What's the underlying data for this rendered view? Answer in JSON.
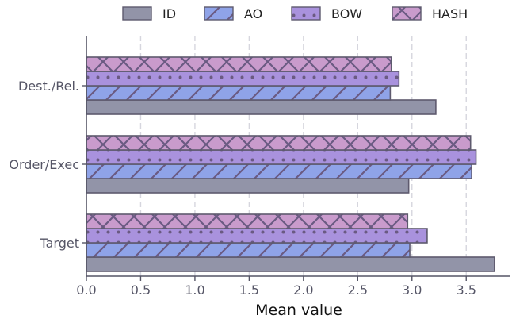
{
  "chart_data": {
    "type": "bar",
    "orientation": "horizontal",
    "categories": [
      "Target",
      "Order/Exec",
      "Dest./Rel."
    ],
    "series": [
      {
        "name": "ID",
        "values": [
          3.76,
          2.97,
          3.22
        ],
        "color": "#9294a8",
        "hatch": "none"
      },
      {
        "name": "AO",
        "values": [
          2.98,
          3.55,
          2.8
        ],
        "color": "#8fa3e8",
        "hatch": "diagonal"
      },
      {
        "name": "BOW",
        "values": [
          3.14,
          3.59,
          2.88
        ],
        "color": "#a992dd",
        "hatch": "dots"
      },
      {
        "name": "HASH",
        "values": [
          2.96,
          3.54,
          2.81
        ],
        "color": "#c99bcc",
        "hatch": "crosshatch"
      }
    ],
    "xlabel": "Mean value",
    "ylabel": "",
    "xlim": [
      0,
      3.9
    ],
    "xticks": [
      "0.0",
      "0.5",
      "1.0",
      "1.5",
      "2.0",
      "2.5",
      "3.0",
      "3.5"
    ],
    "grid": "vertical dashed",
    "legend_position": "top"
  }
}
